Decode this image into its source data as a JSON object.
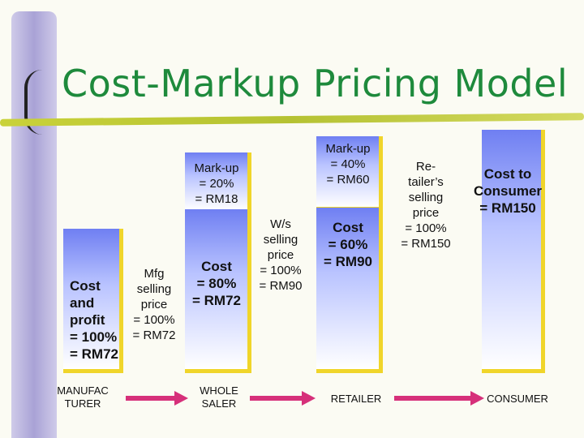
{
  "title": "Cost-Markup Pricing Model",
  "manufacturer": {
    "cost_text": "Cost\nand\nprofit\n= 100%\n= RM72",
    "selling_text": "Mfg\nselling\nprice\n= 100%\n= RM72",
    "label": "MANUFAC\nTURER"
  },
  "wholesaler": {
    "markup_text": "Mark-up\n= 20%\n= RM18",
    "cost_text": "Cost\n= 80%\n= RM72",
    "selling_text": "W/s\nselling\nprice\n= 100%\n= RM90",
    "label": "WHOLE\nSALER"
  },
  "retailer": {
    "markup_text": "Mark-up\n= 40%\n= RM60",
    "cost_text": "Cost\n= 60%\n= RM90",
    "selling_text": "Re-\ntailer’s\nselling\nprice\n= 100%\n= RM150",
    "label": "RETAILER"
  },
  "consumer": {
    "cost_text": "Cost to\nConsumer\n= RM150",
    "label": "CONSUMER"
  },
  "colors": {
    "title": "#1e8a3c",
    "box_top": "#6f7ff2",
    "box_shadow": "#f0d52a",
    "arrow": "#d6307a",
    "scroll": "#b9b4de",
    "underline": "#c9d23a"
  }
}
